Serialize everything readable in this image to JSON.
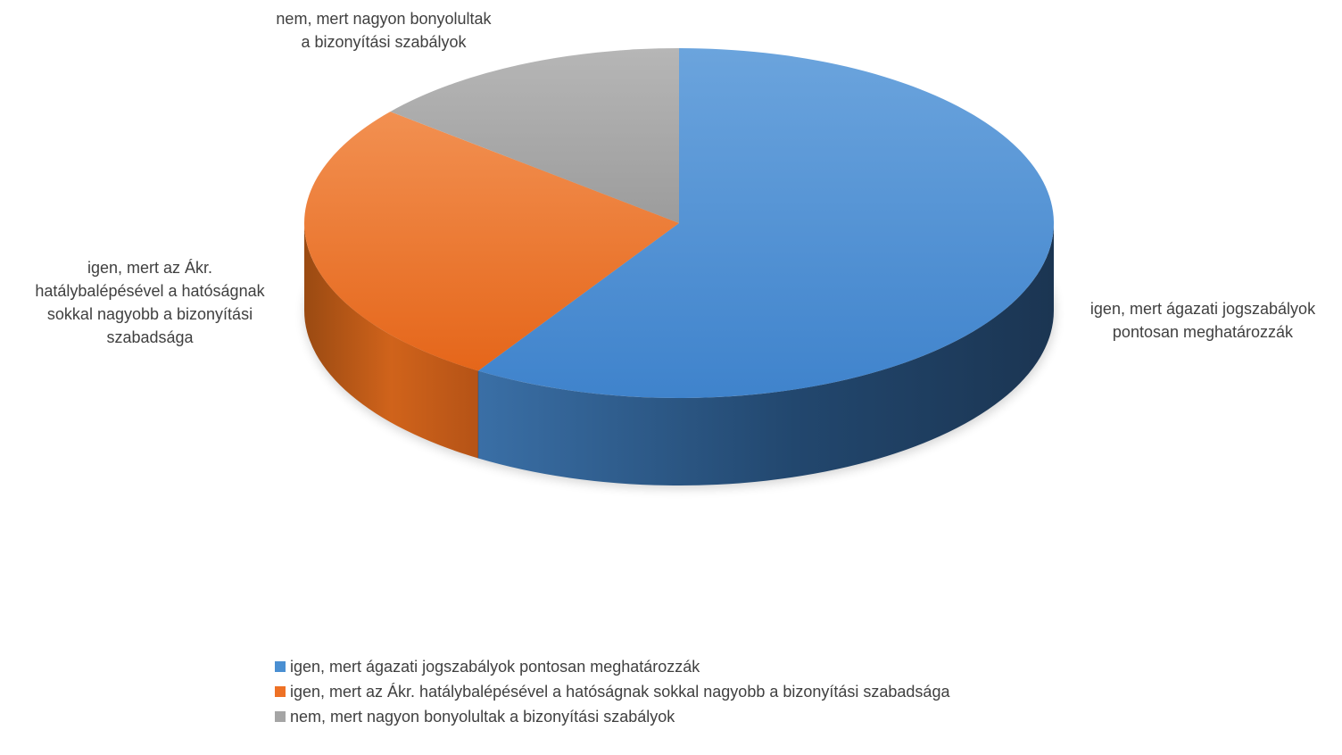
{
  "chart_data": {
    "type": "pie",
    "title": "",
    "categories": [
      "igen, mert ágazati jogszabályok pontosan meghatározzák",
      "igen, mert az Ákr. hatálybalépésével a hatóságnak sokkal nagyobb a bizonyítási szabadsága",
      "nem, mert nagyon bonyolultak a bizonyítási szabályok"
    ],
    "values": [
      59,
      27,
      14
    ],
    "colors": [
      "#4a8fd2",
      "#ee7125",
      "#a5a5a5"
    ],
    "data_labels": [
      [
        "igen, mert ágazati jogszabályok",
        "pontosan meghatározzák"
      ],
      [
        "igen, mert az Ákr.",
        "hatálybalépésével a hatóságnak",
        "sokkal nagyobb a bizonyítási",
        "szabadsága"
      ],
      [
        "nem, mert nagyon bonyolultak",
        "a bizonyítási szabályok"
      ]
    ],
    "legend_position": "bottom",
    "style": "3d"
  }
}
